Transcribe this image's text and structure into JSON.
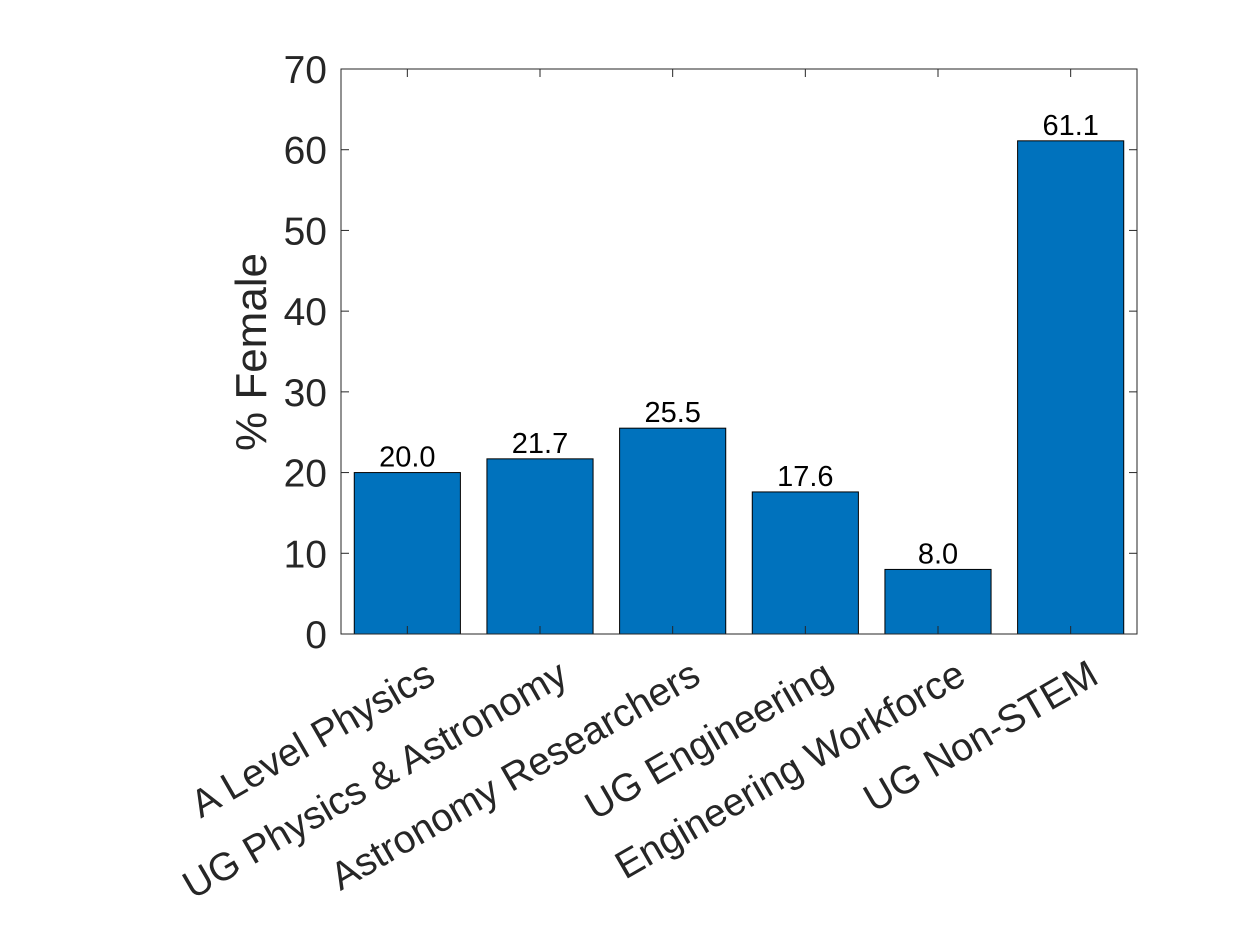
{
  "chart_data": {
    "type": "bar",
    "title": "",
    "xlabel": "",
    "ylabel": "% Female",
    "categories": [
      "A Level Physics",
      "UG Physics & Astronomy",
      "Astronomy Researchers",
      "UG Engineering",
      "Engineering Workforce",
      "UG Non-STEM"
    ],
    "values": [
      20.0,
      21.7,
      25.5,
      17.6,
      8.0,
      61.1
    ],
    "data_labels": [
      "20.0",
      "21.7",
      "25.5",
      "17.6",
      "8.0",
      "61.1"
    ],
    "ylim": [
      0,
      70
    ],
    "yticks": [
      0,
      10,
      20,
      30,
      40,
      50,
      60,
      70
    ],
    "ytick_labels": [
      "0",
      "10",
      "20",
      "30",
      "40",
      "50",
      "60",
      "70"
    ],
    "grid": false,
    "bar_color": "#0072BD",
    "box": true
  }
}
